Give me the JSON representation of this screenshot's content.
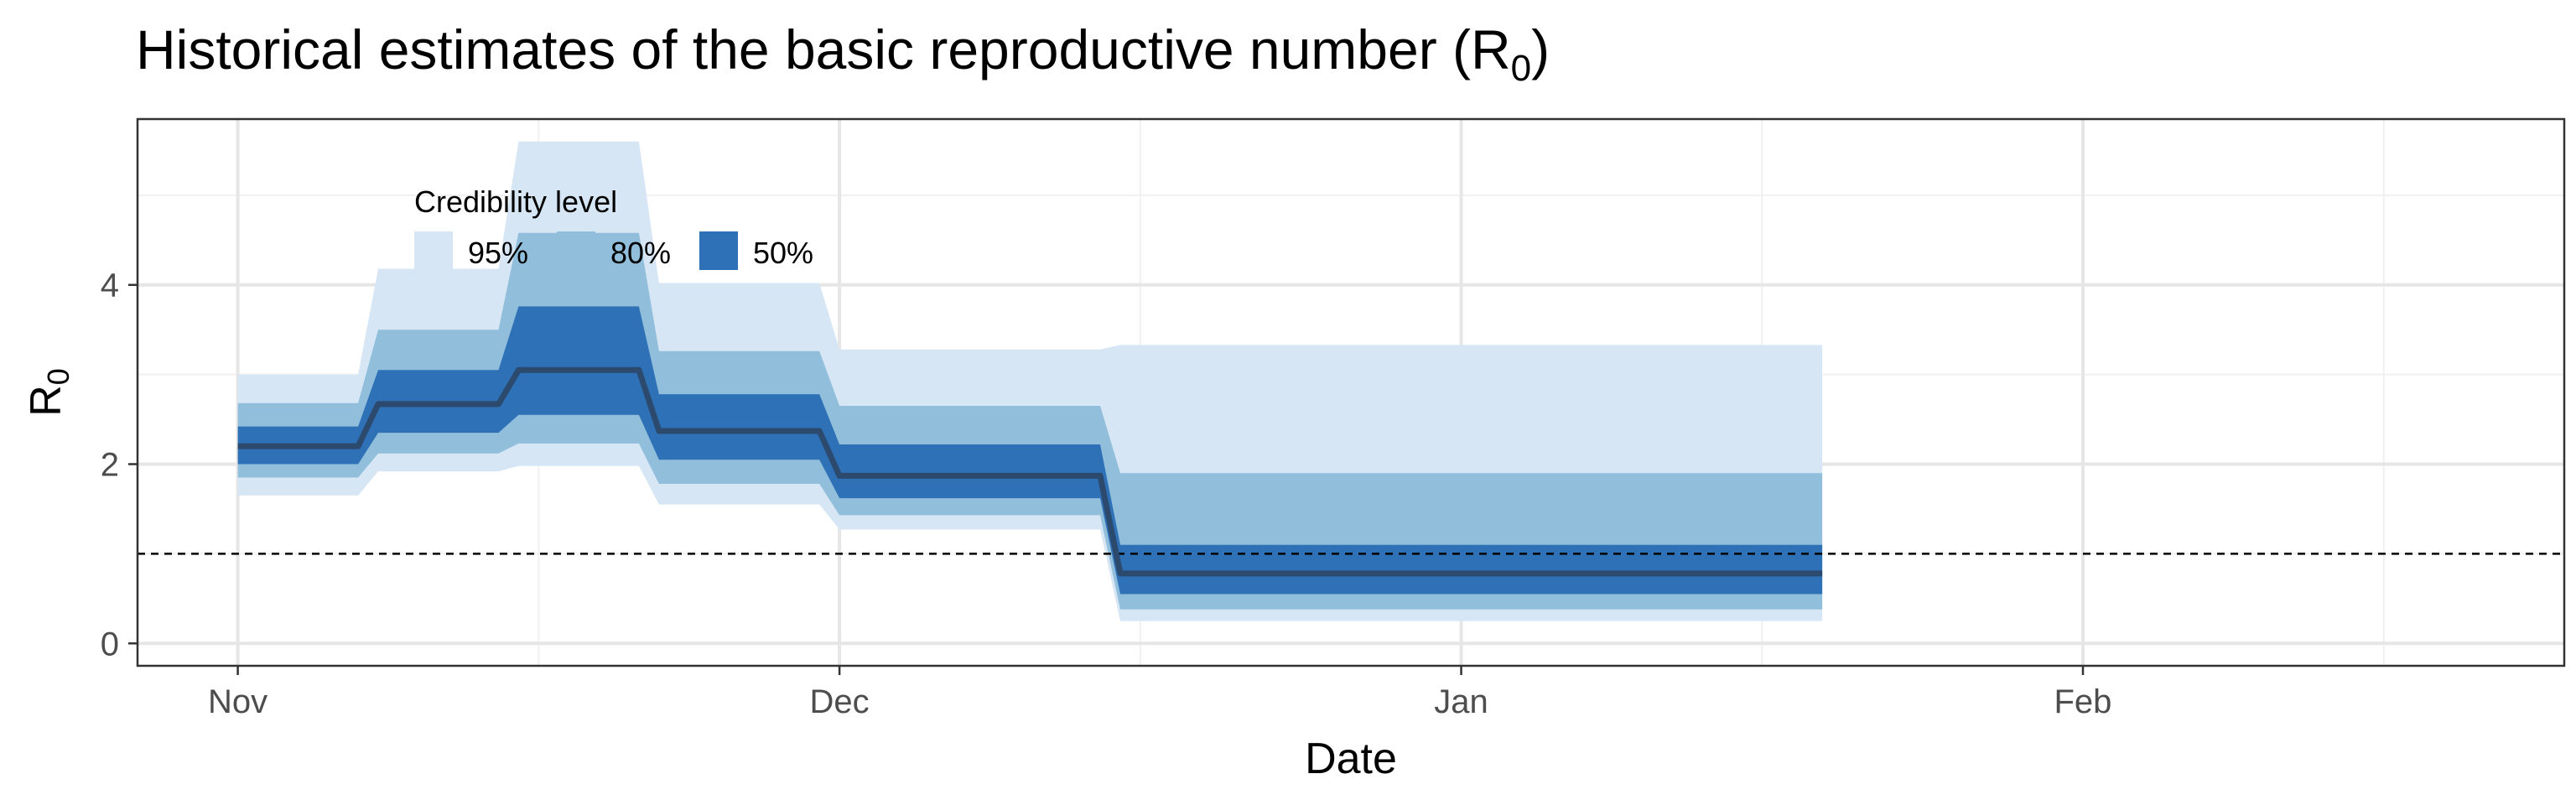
{
  "chart_data": {
    "type": "area",
    "title": "Historical estimates of the basic reproductive number (R",
    "title_subscript": "0",
    "title_suffix": ")",
    "xlabel": "Date",
    "ylabel": "R",
    "ylabel_subscript": "0",
    "xlim": [
      "2020-10-27",
      "2021-02-25"
    ],
    "ylim": [
      -0.25,
      5.85
    ],
    "x_ticks": [
      {
        "date": "2020-11-01",
        "label": "Nov"
      },
      {
        "date": "2020-12-01",
        "label": "Dec"
      },
      {
        "date": "2021-01-01",
        "label": "Jan"
      },
      {
        "date": "2021-02-01",
        "label": "Feb"
      }
    ],
    "x_minor_ticks": [
      "2020-11-16",
      "2020-12-16",
      "2021-01-16",
      "2021-02-16"
    ],
    "y_ticks": [
      0,
      2,
      4
    ],
    "y_minor_ticks": [
      1,
      3,
      5
    ],
    "grid": true,
    "reference_line": {
      "y": 1,
      "style": "dashed"
    },
    "legend": {
      "title": "Credibility level",
      "placement": "top-left",
      "entries": [
        {
          "label": "95%",
          "color": "#d6e6f4"
        },
        {
          "label": "80%",
          "color": "#90bedb"
        },
        {
          "label": "50%",
          "color": "#2f71b7"
        }
      ]
    },
    "median_color": "#2c4a6e",
    "steps": [
      {
        "start": "2020-11-01",
        "end": "2020-11-07",
        "median": 2.2,
        "lo50": 2.0,
        "hi50": 2.42,
        "lo80": 1.85,
        "hi80": 2.68,
        "lo95": 1.65,
        "hi95": 3.0
      },
      {
        "start": "2020-11-08",
        "end": "2020-11-14",
        "median": 2.67,
        "lo50": 2.35,
        "hi50": 3.05,
        "lo80": 2.12,
        "hi80": 3.5,
        "lo95": 1.92,
        "hi95": 4.18
      },
      {
        "start": "2020-11-15",
        "end": "2020-11-21",
        "median": 3.05,
        "lo50": 2.55,
        "hi50": 3.76,
        "lo80": 2.23,
        "hi80": 4.58,
        "lo95": 1.98,
        "hi95": 5.6
      },
      {
        "start": "2020-11-22",
        "end": "2020-11-30",
        "median": 2.37,
        "lo50": 2.05,
        "hi50": 2.78,
        "lo80": 1.78,
        "hi80": 3.26,
        "lo95": 1.55,
        "hi95": 4.02
      },
      {
        "start": "2020-12-01",
        "end": "2020-12-14",
        "median": 1.87,
        "lo50": 1.62,
        "hi50": 2.22,
        "lo80": 1.43,
        "hi80": 2.65,
        "lo95": 1.27,
        "hi95": 3.28
      },
      {
        "start": "2020-12-15",
        "end": "2021-01-19",
        "median": 0.78,
        "lo50": 0.55,
        "hi50": 1.1,
        "lo80": 0.38,
        "hi80": 1.9,
        "lo95": 0.25,
        "hi95": 3.33
      }
    ]
  }
}
